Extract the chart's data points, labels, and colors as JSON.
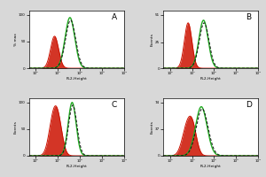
{
  "panels": [
    {
      "label": "A",
      "ylabel": "% max",
      "xlabel": "FL2-Height",
      "red_mu": 0.85,
      "red_sigma": 0.18,
      "red_height": 0.6,
      "green_mu": 1.55,
      "green_sigma": 0.22,
      "green_height": 0.95,
      "dashed_mu": 1.58,
      "dashed_sigma": 0.23,
      "dashed_height": 0.9,
      "ymax_label": "100",
      "yticks": [
        0,
        50,
        100
      ]
    },
    {
      "label": "B",
      "ylabel": "Events",
      "xlabel": "FL2-Height",
      "red_mu": 0.82,
      "red_sigma": 0.17,
      "red_height": 0.85,
      "green_mu": 1.52,
      "green_sigma": 0.21,
      "green_height": 0.9,
      "dashed_mu": 1.55,
      "dashed_sigma": 0.22,
      "dashed_height": 0.85,
      "ymax_label": "51",
      "yticks": [
        0,
        25,
        51
      ]
    },
    {
      "label": "C",
      "ylabel": "Events",
      "xlabel": "FL2-Height",
      "red_mu": 0.8,
      "red_sigma": 0.2,
      "red_height": 0.7,
      "red_mu2": 1.05,
      "red_sigma2": 0.18,
      "red_height2": 0.45,
      "green_mu": 1.65,
      "green_sigma": 0.18,
      "green_height": 1.0,
      "dashed_mu": 1.68,
      "dashed_sigma": 0.19,
      "dashed_height": 0.95,
      "ymax_label": "100",
      "yticks": [
        0,
        50,
        100
      ]
    },
    {
      "label": "D",
      "ylabel": "Events",
      "xlabel": "FL2-Height",
      "red_mu": 0.78,
      "red_sigma": 0.22,
      "red_height": 0.55,
      "red_mu2": 1.05,
      "red_sigma2": 0.18,
      "red_height2": 0.38,
      "green_mu": 1.42,
      "green_sigma": 0.26,
      "green_height": 0.92,
      "dashed_mu": 1.46,
      "dashed_sigma": 0.27,
      "dashed_height": 0.88,
      "ymax_label": "74",
      "yticks": [
        0,
        37,
        74
      ]
    }
  ],
  "bg_color": "#d8d8d8",
  "plot_bg": "#ffffff",
  "red_fill_color": "#cc1100",
  "red_line_color": "#cc1100",
  "green_color": "#22aa22",
  "dashed_color": "#111111",
  "xlim": [
    -0.3,
    4.0
  ],
  "ylim": [
    0,
    1.08
  ]
}
